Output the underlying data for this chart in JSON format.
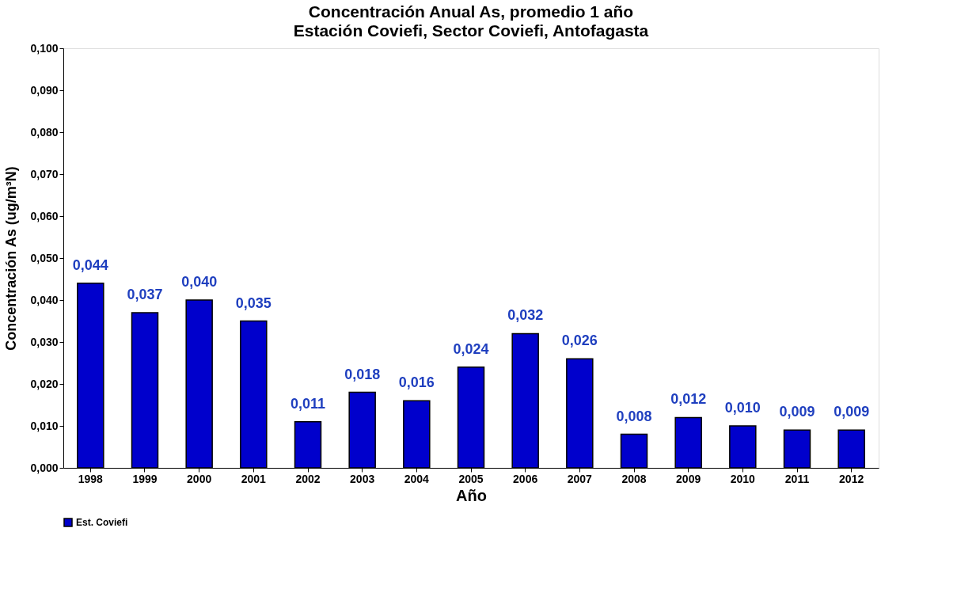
{
  "chart_data": {
    "type": "bar",
    "title": "Concentración Anual As, promedio 1 año",
    "subtitle": "Estación Coviefi, Sector Coviefi, Antofagasta",
    "xlabel": "Año",
    "ylabel": "Concentración As (ug/m³N)",
    "categories": [
      "1998",
      "1999",
      "2000",
      "2001",
      "2002",
      "2003",
      "2004",
      "2005",
      "2006",
      "2007",
      "2008",
      "2009",
      "2010",
      "2011",
      "2012"
    ],
    "series": [
      {
        "name": "Est. Coviefi",
        "color": "#0000cc",
        "values": [
          0.044,
          0.037,
          0.04,
          0.035,
          0.011,
          0.018,
          0.016,
          0.024,
          0.032,
          0.026,
          0.008,
          0.012,
          0.01,
          0.009,
          0.009
        ],
        "value_labels": [
          "0,044",
          "0,037",
          "0,040",
          "0,035",
          "0,011",
          "0,018",
          "0,016",
          "0,024",
          "0,032",
          "0,026",
          "0,008",
          "0,012",
          "0,010",
          "0,009",
          "0,009"
        ]
      }
    ],
    "ylim": [
      0,
      0.1
    ],
    "yticks": [
      {
        "value": 0,
        "label": "0,000"
      },
      {
        "value": 0.01,
        "label": "0,010"
      },
      {
        "value": 0.02,
        "label": "0,020"
      },
      {
        "value": 0.03,
        "label": "0,030"
      },
      {
        "value": 0.04,
        "label": "0,040"
      },
      {
        "value": 0.05,
        "label": "0,050"
      },
      {
        "value": 0.06,
        "label": "0,060"
      },
      {
        "value": 0.07,
        "label": "0,070"
      },
      {
        "value": 0.08,
        "label": "0,080"
      },
      {
        "value": 0.09,
        "label": "0,090"
      },
      {
        "value": 0.1,
        "label": "0,100"
      }
    ],
    "grid": false,
    "legend": "bottom"
  }
}
